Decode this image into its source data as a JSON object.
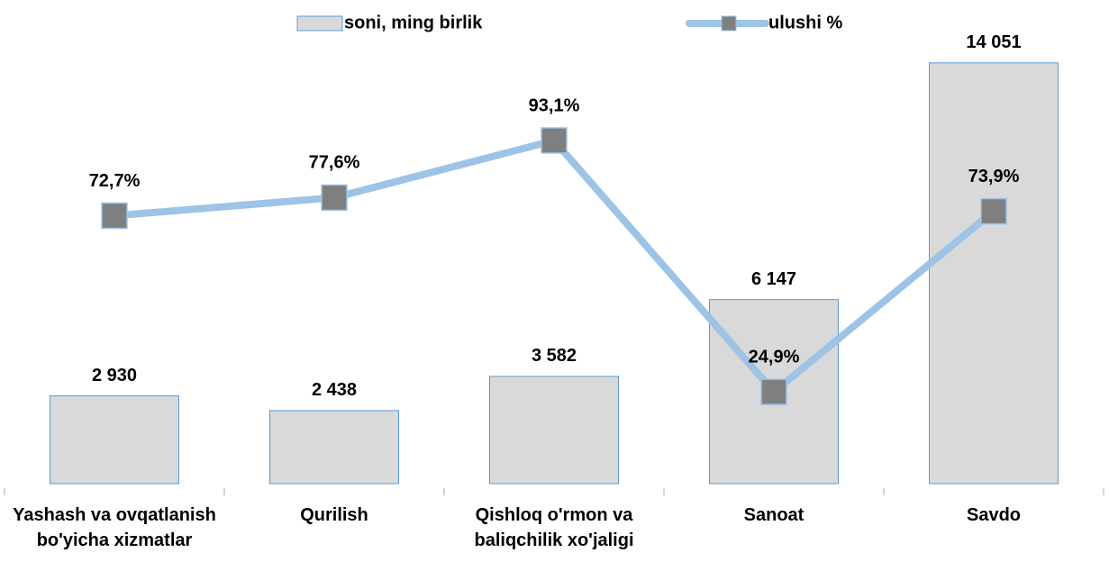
{
  "chart_data": {
    "type": "bar_line",
    "categories": [
      "Yashash va ovqatlanish bo'yicha xizmatlar",
      "Qurilish",
      "Qishloq o'rmon va baliqchilik xo'jaligi",
      "Sanoat",
      "Savdo"
    ],
    "series": [
      {
        "name": "soni, ming birlik",
        "type": "bar",
        "color": "#d9d9d9",
        "values": [
          2930,
          2438,
          3582,
          6147,
          14051
        ],
        "value_labels": [
          "2 930",
          "2 438",
          "3 582",
          "6 147",
          "14 051"
        ]
      },
      {
        "name": "ulushi %",
        "type": "line",
        "axis": "y2",
        "color": "#9dc3e6",
        "marker_color": "#7f7f7f",
        "values": [
          72.7,
          77.6,
          93.1,
          24.9,
          73.9
        ],
        "value_labels": [
          "72,7%",
          "77,6%",
          "93,1%",
          "24,9%",
          "73,9%"
        ]
      }
    ],
    "ylim": [
      0,
      16000
    ],
    "y2lim": [
      0,
      130
    ],
    "legend": "top"
  }
}
